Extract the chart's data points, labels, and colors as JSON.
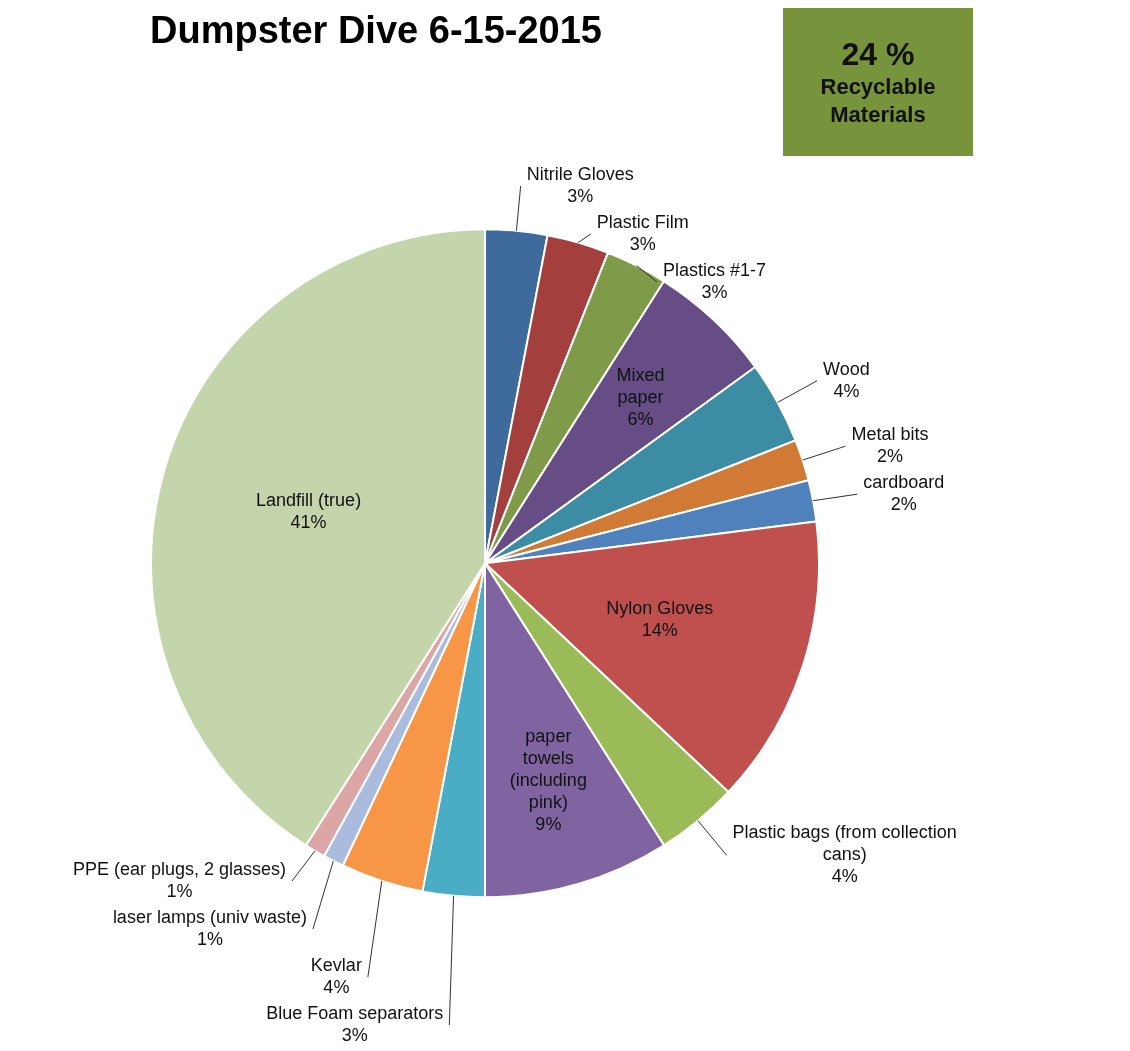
{
  "chart_data": {
    "type": "pie",
    "title": "Dumpster Dive 6-15-2015",
    "categories": [
      "Nitrile Gloves",
      "Plastic Film",
      "Plastics #1-7",
      "Mixed paper",
      "Wood",
      "Metal bits",
      "cardboard",
      "Nylon Gloves",
      "Plastic bags (from collection cans)",
      "paper towels (including pink)",
      "Blue Foam separators",
      "Kevlar",
      "laser lamps (univ waste)",
      "PPE (ear plugs, 2 glasses)",
      "Landfill (true)"
    ],
    "values": [
      3,
      3,
      3,
      6,
      4,
      2,
      2,
      14,
      4,
      9,
      3,
      4,
      1,
      1,
      41
    ],
    "value_labels": [
      "3%",
      "3%",
      "3%",
      "6%",
      "4%",
      "2%",
      "2%",
      "14%",
      "4%",
      "9%",
      "3%",
      "4%",
      "1%",
      "1%",
      "41%"
    ],
    "colors": [
      "#3f6a9c",
      "#a33f3d",
      "#7f9a48",
      "#664d86",
      "#3c8da3",
      "#d07a35",
      "#4f81bd",
      "#c0504d",
      "#9bbb59",
      "#8064a2",
      "#4bacc6",
      "#f79646",
      "#a9bcdd",
      "#dba6a5",
      "#c5d5ab"
    ],
    "annotations": [
      "24 %",
      "Recyclable Materials"
    ],
    "legend": false
  }
}
